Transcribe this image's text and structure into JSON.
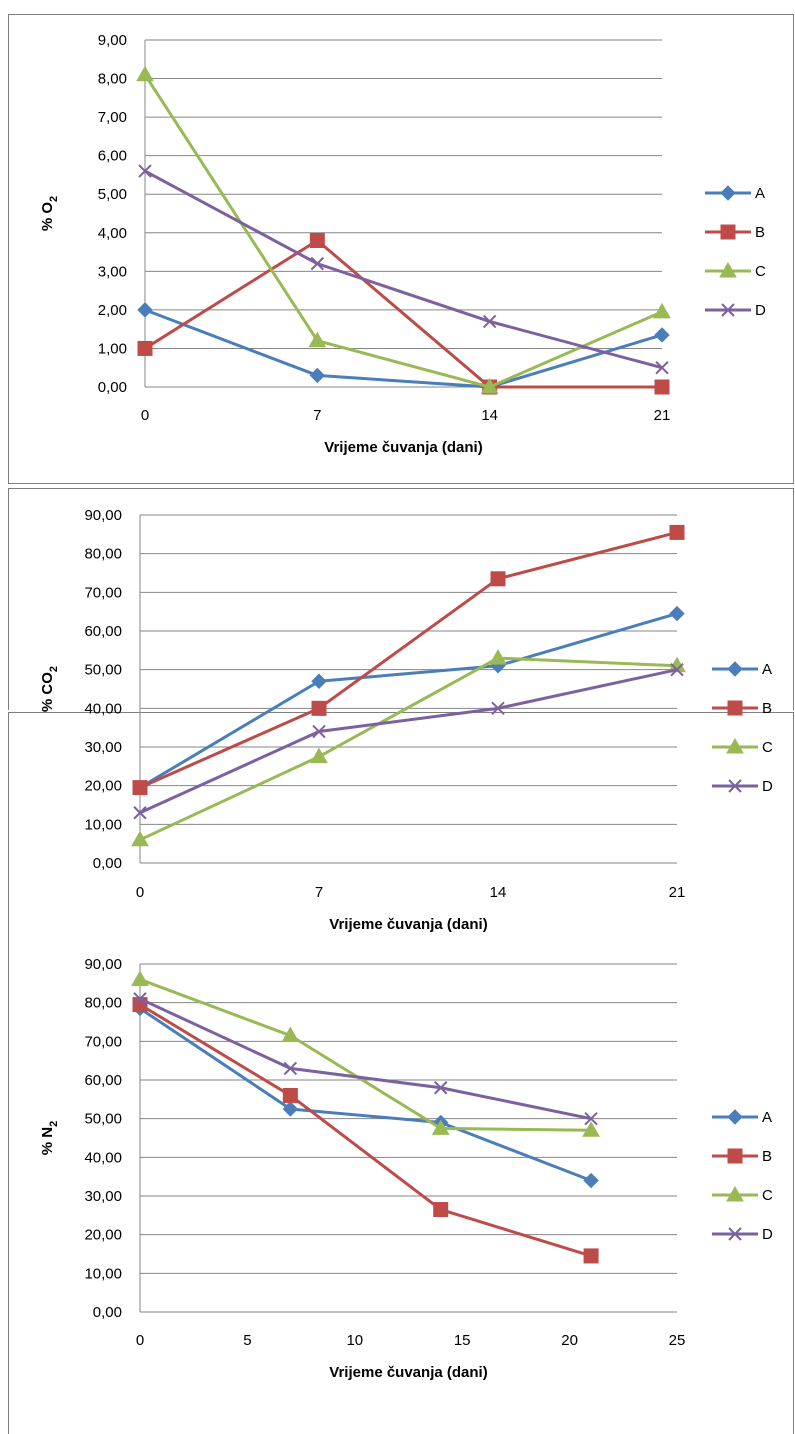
{
  "chart_data": [
    {
      "type": "line",
      "ylabel": "% O",
      "ylabel_sub": "2",
      "xlabel": "Vrijeme čuvanja (dani)",
      "x_scale": "category",
      "categories": [
        "0",
        "7",
        "14",
        "21"
      ],
      "ylim": [
        0,
        9
      ],
      "y_ticks": [
        "0,00",
        "1,00",
        "2,00",
        "3,00",
        "4,00",
        "5,00",
        "6,00",
        "7,00",
        "8,00",
        "9,00"
      ],
      "grid": true,
      "legend_position": "right",
      "series": [
        {
          "name": "A",
          "color": "#4a7ebb",
          "marker": "diamond",
          "values": [
            2.0,
            0.3,
            0.0,
            1.35
          ]
        },
        {
          "name": "B",
          "color": "#be4b48",
          "marker": "square",
          "values": [
            1.0,
            3.8,
            0.0,
            0.0
          ]
        },
        {
          "name": "C",
          "color": "#98b954",
          "marker": "triangle",
          "values": [
            8.1,
            1.2,
            0.0,
            1.95
          ]
        },
        {
          "name": "D",
          "color": "#7d60a0",
          "marker": "x",
          "values": [
            5.6,
            3.2,
            1.7,
            0.5
          ]
        }
      ]
    },
    {
      "type": "line",
      "ylabel": "% CO",
      "ylabel_sub": "2",
      "xlabel": "Vrijeme čuvanja (dani)",
      "x_scale": "category",
      "categories": [
        "0",
        "7",
        "14",
        "21"
      ],
      "ylim": [
        0,
        90
      ],
      "y_ticks": [
        "0,00",
        "10,00",
        "20,00",
        "30,00",
        "40,00",
        "50,00",
        "60,00",
        "70,00",
        "80,00",
        "90,00"
      ],
      "grid": true,
      "legend_position": "right",
      "series": [
        {
          "name": "A",
          "color": "#4a7ebb",
          "marker": "diamond",
          "values": [
            19.5,
            47.0,
            51.0,
            64.5
          ]
        },
        {
          "name": "B",
          "color": "#be4b48",
          "marker": "square",
          "values": [
            19.5,
            40.0,
            73.5,
            85.5
          ]
        },
        {
          "name": "C",
          "color": "#98b954",
          "marker": "triangle",
          "values": [
            6.0,
            27.5,
            53.0,
            51.0
          ]
        },
        {
          "name": "D",
          "color": "#7d60a0",
          "marker": "x",
          "values": [
            13.0,
            34.0,
            40.0,
            50.0
          ]
        }
      ]
    },
    {
      "type": "line",
      "ylabel": "% N",
      "ylabel_sub": "2",
      "xlabel": "Vrijeme čuvanja (dani)",
      "x_scale": "linear",
      "xlim": [
        0,
        25
      ],
      "x_ticks": [
        0,
        5,
        10,
        15,
        20,
        25
      ],
      "x_tick_labels": [
        "0",
        "5",
        "10",
        "15",
        "20",
        "25"
      ],
      "x": [
        0,
        7,
        14,
        21
      ],
      "ylim": [
        0,
        90
      ],
      "y_ticks": [
        "0,00",
        "10,00",
        "20,00",
        "30,00",
        "40,00",
        "50,00",
        "60,00",
        "70,00",
        "80,00",
        "90,00"
      ],
      "grid": true,
      "legend_position": "right",
      "series": [
        {
          "name": "A",
          "color": "#4a7ebb",
          "marker": "diamond",
          "values": [
            78.5,
            52.5,
            49.0,
            34.0
          ]
        },
        {
          "name": "B",
          "color": "#be4b48",
          "marker": "square",
          "values": [
            79.5,
            56.0,
            26.5,
            14.5
          ]
        },
        {
          "name": "C",
          "color": "#98b954",
          "marker": "triangle",
          "values": [
            86.0,
            71.5,
            47.5,
            47.0
          ]
        },
        {
          "name": "D",
          "color": "#7d60a0",
          "marker": "x",
          "values": [
            81.0,
            63.0,
            58.0,
            50.0
          ]
        }
      ]
    }
  ]
}
